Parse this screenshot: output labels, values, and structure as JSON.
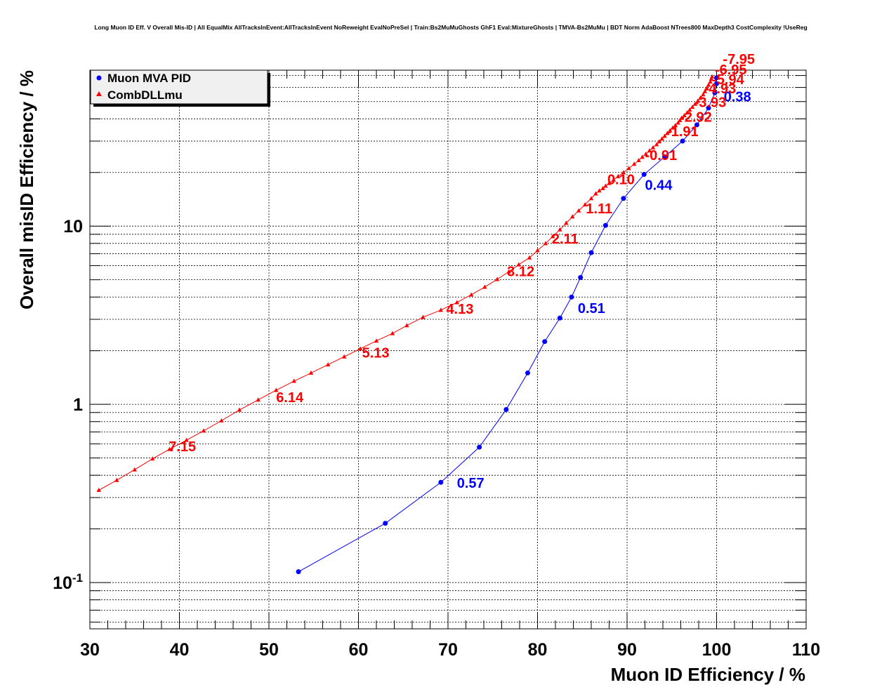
{
  "chart_data": {
    "type": "scatter",
    "title": "Long Muon ID Eff. V Overall Mis-ID | All EqualMix AllTracksInEvent:AllTracksInEvent NoReweight EvalNoPreSel | Train:Bs2MuMuGhosts GhF1 Eval:MixtureGhosts | TMVA-Bs2MuMu | BDT Norm AdaBoost NTrees800 MaxDepth3 CostComplexity !UseReg",
    "xlabel": "Muon ID Efficiency / %",
    "ylabel": "Overall misID Efficiency / %",
    "xlim": [
      30,
      110
    ],
    "ylim": [
      0.055,
      75
    ],
    "yscale": "log",
    "grid": true,
    "legend_position": "top-left",
    "x_ticks": [
      "30",
      "40",
      "50",
      "60",
      "70",
      "80",
      "90",
      "100",
      "110"
    ],
    "y_ticks": [
      {
        "base": "10",
        "exp": "-1"
      },
      {
        "base": "1",
        "exp": ""
      },
      {
        "base": "10",
        "exp": ""
      }
    ],
    "series": [
      {
        "name": "Muon MVA PID",
        "color": "#0000ff",
        "marker": "circle",
        "x": [
          53.3,
          63.0,
          69.2,
          73.5,
          76.5,
          78.9,
          80.8,
          82.5,
          83.8,
          84.8,
          86.0,
          87.6,
          89.6,
          91.9,
          94.2,
          96.2,
          97.8,
          99.1,
          99.8,
          100.0,
          100.0
        ],
        "y": [
          0.115,
          0.215,
          0.365,
          0.575,
          0.935,
          1.5,
          2.25,
          3.05,
          4.0,
          5.15,
          7.1,
          10.1,
          14.3,
          19.5,
          24.5,
          30.0,
          37.0,
          46.0,
          56.0,
          63.0,
          68.0
        ],
        "cut_labels": [
          {
            "text": "0.57",
            "x": 71.0,
            "y": 0.34
          },
          {
            "text": "0.51",
            "x": 84.5,
            "y": 3.25
          },
          {
            "text": "0.44",
            "x": 92.0,
            "y": 16.0
          },
          {
            "text": "0.38",
            "x": 100.8,
            "y": 50.0
          }
        ]
      },
      {
        "name": "CombDLLmu",
        "color": "#ff0000",
        "marker": "triangle",
        "x": [
          31.0,
          33.0,
          35.0,
          37.0,
          38.9,
          40.8,
          42.7,
          44.7,
          46.7,
          48.8,
          50.8,
          52.8,
          54.7,
          56.6,
          58.4,
          60.2,
          62.0,
          63.8,
          65.4,
          67.2,
          69.2,
          71.0,
          72.6,
          74.1,
          75.5,
          76.8,
          77.9,
          79.1,
          80.0,
          80.9,
          81.7,
          82.5,
          83.2,
          83.9,
          84.6,
          85.3,
          86.0,
          86.5,
          86.9,
          87.3,
          87.6,
          88.0,
          88.5,
          89.0,
          89.6,
          90.2,
          90.8,
          91.3,
          91.7,
          92.1,
          92.5,
          92.9,
          93.3,
          93.6,
          93.9,
          94.2,
          94.5,
          94.8,
          95.1,
          95.4,
          95.7,
          95.9,
          96.1,
          96.4,
          96.7,
          97.0,
          97.3,
          97.6,
          97.9,
          98.2,
          98.5,
          98.7,
          98.9,
          99.1,
          99.3,
          99.4,
          99.5
        ],
        "y": [
          0.33,
          0.375,
          0.43,
          0.495,
          0.56,
          0.63,
          0.71,
          0.81,
          0.93,
          1.06,
          1.2,
          1.35,
          1.5,
          1.67,
          1.85,
          2.05,
          2.27,
          2.5,
          2.77,
          3.08,
          3.38,
          3.73,
          4.12,
          4.55,
          5.03,
          5.55,
          6.08,
          6.65,
          7.3,
          8.0,
          8.75,
          9.55,
          10.4,
          11.3,
          12.2,
          13.2,
          14.3,
          15.2,
          15.8,
          16.3,
          16.8,
          17.4,
          18.2,
          19.0,
          20.0,
          21.1,
          22.3,
          23.4,
          24.4,
          25.4,
          26.5,
          27.6,
          28.7,
          29.8,
          30.9,
          32.0,
          33.2,
          34.4,
          35.6,
          36.8,
          38.0,
          39.2,
          40.4,
          41.8,
          43.3,
          44.9,
          46.6,
          48.4,
          50.4,
          52.5,
          54.7,
          57.0,
          59.5,
          62.0,
          64.6,
          67.0,
          69.0
        ],
        "cut_labels": [
          {
            "text": "7.15",
            "x": 38.8,
            "y": 0.545
          },
          {
            "text": "6.14",
            "x": 50.8,
            "y": 1.03
          },
          {
            "text": "5.13",
            "x": 60.4,
            "y": 1.83
          },
          {
            "text": "4.13",
            "x": 69.8,
            "y": 3.23
          },
          {
            "text": "3.12",
            "x": 76.6,
            "y": 5.25
          },
          {
            "text": "2.11",
            "x": 81.6,
            "y": 7.98
          },
          {
            "text": "1.11",
            "x": 85.4,
            "y": 11.8
          },
          {
            "text": "0.10",
            "x": 87.8,
            "y": 17.2
          },
          {
            "text": "-0.91",
            "x": 92.0,
            "y": 23.5
          },
          {
            "text": "-1.91",
            "x": 94.4,
            "y": 32.0
          },
          {
            "text": "-2.92",
            "x": 95.9,
            "y": 38.5
          },
          {
            "text": "-3.93",
            "x": 97.5,
            "y": 46.6
          },
          {
            "text": "-4.93",
            "x": 98.6,
            "y": 55.6
          },
          {
            "text": "-5.94",
            "x": 99.5,
            "y": 62.5
          },
          {
            "text": "-6.95",
            "x": 99.8,
            "y": 71.0
          },
          {
            "text": "-7.95",
            "x": 100.7,
            "y": 81.5
          }
        ]
      }
    ]
  }
}
